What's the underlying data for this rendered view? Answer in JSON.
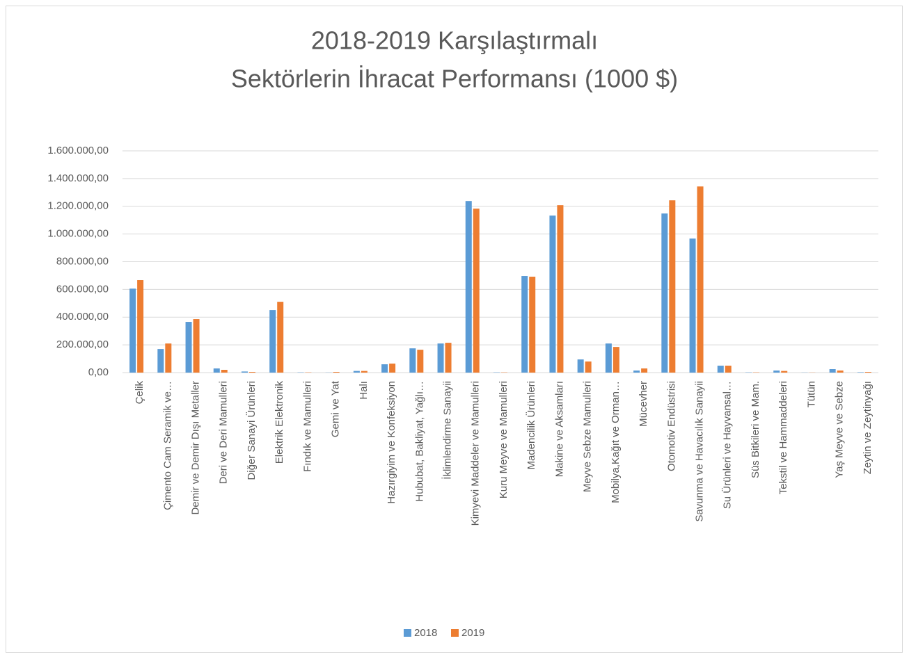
{
  "chart_data": {
    "type": "bar",
    "title": [
      "2018-2019 Karşılaştırmalı",
      "Sektörlerin İhracat Performansı (1000 $)"
    ],
    "categories": [
      "Çelik",
      "Çimento Cam Seramik ve…",
      "Demir ve Demir Dışı Metaller",
      "Deri ve Deri Mamulleri",
      "Diğer Sanayi Ürünleri",
      "Elektrik Elektronik",
      "Fındık ve Mamulleri",
      "Gemi ve Yat",
      "Halı",
      "Hazırgiyim ve Konfeksiyon",
      "Hububat, Bakliyat, Yağlı…",
      "İklimlendirme Sanayii",
      "Kimyevi Maddeler ve Mamulleri",
      "Kuru Meyve ve Mamulleri",
      "Madencilik Ürünleri",
      "Makine ve Aksamları",
      "Meyve Sebze Mamulleri",
      "Mobilya,Kağıt ve Orman…",
      "Mücevher",
      "Otomotiv Endüstrisi",
      "Savunma ve Havacılık Sanayii",
      "Su Ürünleri ve Hayvansal…",
      "Süs Bitkileri ve Mam.",
      "Tekstil ve Hammaddeleri",
      "Tütün",
      "Yaş Meyve ve Sebze",
      "Zeytin ve Zeytinyağı"
    ],
    "series": [
      {
        "name": "2018",
        "color": "#5b9bd5",
        "values": [
          606000,
          170000,
          366000,
          30000,
          8000,
          451000,
          2000,
          1000,
          12000,
          60000,
          175000,
          210000,
          1238000,
          2000,
          697000,
          1133000,
          95000,
          210000,
          15000,
          1148000,
          967000,
          50000,
          2000,
          15000,
          1000,
          25000,
          3000
        ]
      },
      {
        "name": "2019",
        "color": "#ed7d31",
        "values": [
          667000,
          210000,
          386000,
          20000,
          5000,
          511000,
          2000,
          5000,
          12000,
          65000,
          165000,
          215000,
          1183000,
          2000,
          692000,
          1208000,
          80000,
          185000,
          30000,
          1243000,
          1343000,
          50000,
          2000,
          12000,
          1000,
          15000,
          5000
        ]
      }
    ],
    "ylim": [
      0,
      1600000
    ],
    "yticks": [
      {
        "value": 0,
        "label": "0,00"
      },
      {
        "value": 200000,
        "label": "200.000,00"
      },
      {
        "value": 400000,
        "label": "400.000,00"
      },
      {
        "value": 600000,
        "label": "600.000,00"
      },
      {
        "value": 800000,
        "label": "800.000,00"
      },
      {
        "value": 1000000,
        "label": "1.000.000,00"
      },
      {
        "value": 1200000,
        "label": "1.200.000,00"
      },
      {
        "value": 1400000,
        "label": "1.400.000,00"
      },
      {
        "value": 1600000,
        "label": "1.600.000,00"
      }
    ],
    "grid": true,
    "legend": "bottom"
  }
}
